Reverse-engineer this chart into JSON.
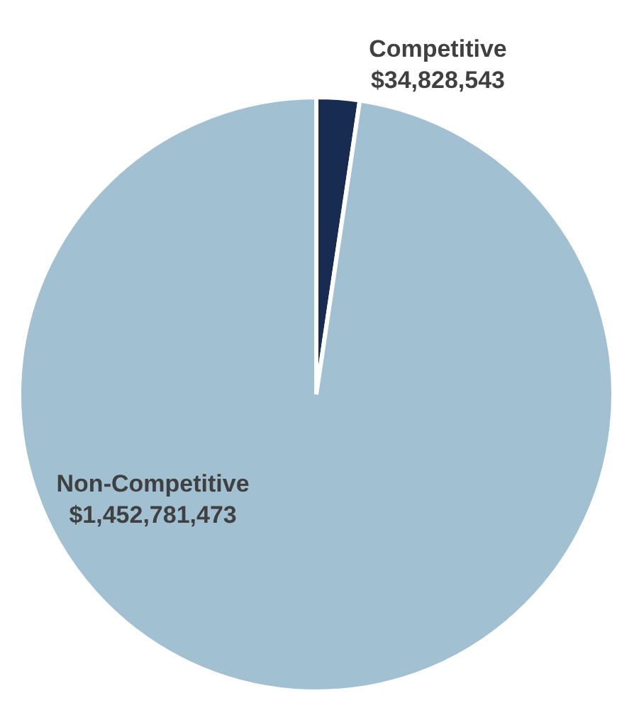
{
  "chart_data": {
    "type": "pie",
    "categories": [
      "Competitive",
      "Non-Competitive"
    ],
    "values": [
      34828543,
      1452781473
    ],
    "value_labels": [
      "$34,828,543",
      "$1,452,781,473"
    ],
    "colors": [
      "#172c50",
      "#a1c0d2"
    ],
    "legend": false
  }
}
